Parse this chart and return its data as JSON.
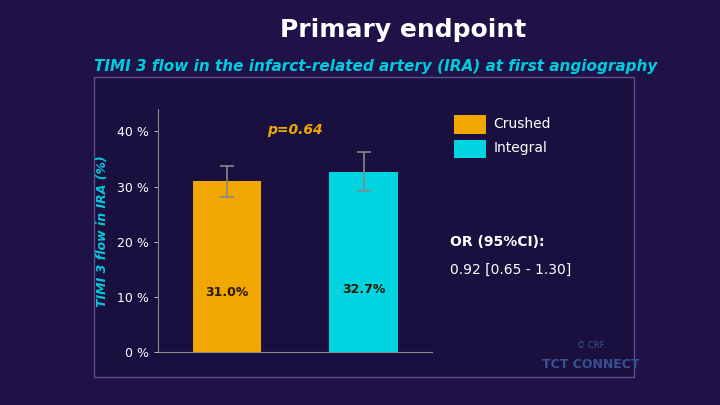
{
  "title": "Primary endpoint",
  "subtitle": "TIMI 3 flow in the infarct-related artery (IRA) at first angiography",
  "background_color": "#1e1248",
  "chart_panel_color": "#1a1040",
  "chart_bg_color": "#1e1450",
  "chart_border_color": "#5a5090",
  "bars": [
    {
      "label": "Crushed",
      "value": 31.0,
      "color": "#f0a800",
      "error": 2.8
    },
    {
      "label": "Integral",
      "value": 32.7,
      "color": "#00d4e0",
      "error": 3.5
    }
  ],
  "ylabel": "TIMI 3 flow in IRA (%)",
  "ylim": [
    0,
    44
  ],
  "yticks": [
    0,
    10,
    20,
    30,
    40
  ],
  "ytick_labels": [
    "0 %",
    "10 %",
    "20 %",
    "30 %",
    "40 %"
  ],
  "p_value_text": "p=0.64",
  "p_value_color": "#f0a800",
  "or_line1": "OR (95%CI):",
  "or_line2": "0.92 [0.65 - 1.30]",
  "or_text_color": "#ffffff",
  "title_color": "#ffffff",
  "subtitle_color": "#00ccdd",
  "ylabel_color": "#00ccdd",
  "tick_color": "#ffffff",
  "bar_label_color": "#2a1800",
  "legend_labels": [
    "Crushed",
    "Integral"
  ],
  "legend_colors": [
    "#f0a800",
    "#00d4e0"
  ],
  "title_fontsize": 18,
  "subtitle_fontsize": 11,
  "ylabel_fontsize": 9,
  "tick_fontsize": 9,
  "bar_label_fontsize": 9,
  "p_value_fontsize": 10,
  "or_fontsize": 10,
  "legend_fontsize": 10,
  "tct_color": "#3a5090",
  "crf_color": "#3a5090"
}
